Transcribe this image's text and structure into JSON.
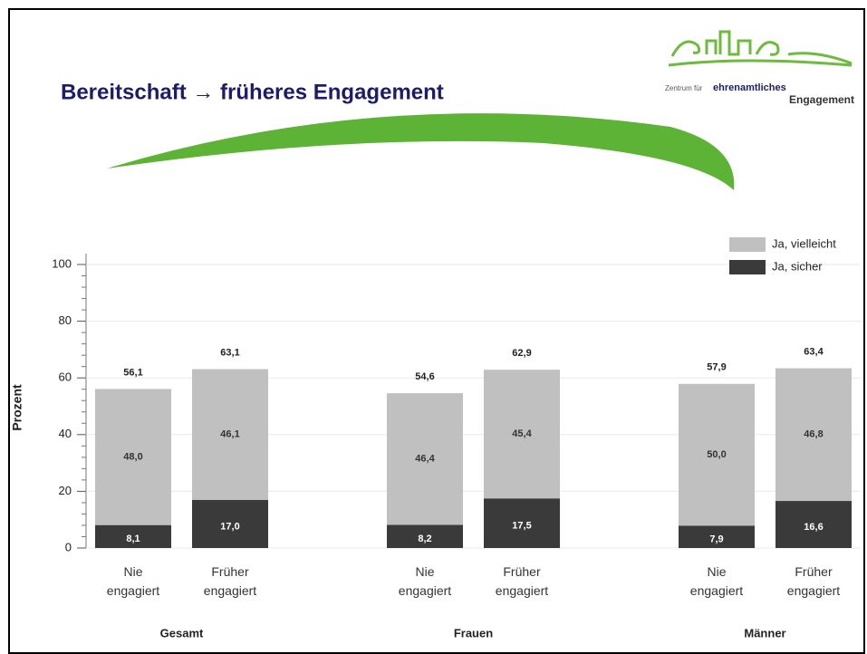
{
  "logo": {
    "line1": "Zentrum für",
    "line1b": "ehrenamtliches",
    "line2": "Engagement"
  },
  "chart_data": {
    "type": "stacked_bar",
    "title": "Bereitschaft → früheres Engagement",
    "y_label": "Prozent",
    "categories": [
      [
        "Nie",
        "engagiert"
      ],
      [
        "Früher",
        "engagiert"
      ],
      [
        "Nie",
        "engagiert"
      ],
      [
        "Früher",
        "engagiert"
      ],
      [
        "Nie",
        "engagiert"
      ],
      [
        "Früher",
        "engagiert"
      ]
    ],
    "groups": [
      "Gesamt",
      "Frauen",
      "Männer"
    ],
    "series": [
      {
        "name": "Ja, vielleicht",
        "color": "#c0c0c0",
        "values": [
          48.0,
          46.1,
          46.4,
          45.4,
          50.0,
          46.8
        ],
        "value_labels": [
          "48,0",
          "46,1",
          "46,4",
          "45,4",
          "50,0",
          "46,8"
        ]
      },
      {
        "name": "Ja, sicher",
        "color": "#3a3a3a",
        "values": [
          8.1,
          17.0,
          8.2,
          17.5,
          7.9,
          16.6
        ],
        "value_labels": [
          "8,1",
          "17,0",
          "8,2",
          "17,5",
          "7,9",
          "16,6"
        ]
      }
    ],
    "totals": [
      56.1,
      63.1,
      54.6,
      62.9,
      57.9,
      63.4
    ],
    "total_labels": [
      "56,1",
      "63,1",
      "54,6",
      "62,9",
      "57,9",
      "63,4"
    ],
    "ylim": [
      0,
      100
    ],
    "yticks": [
      0,
      20,
      40,
      60,
      80,
      100
    ],
    "grid": true
  }
}
